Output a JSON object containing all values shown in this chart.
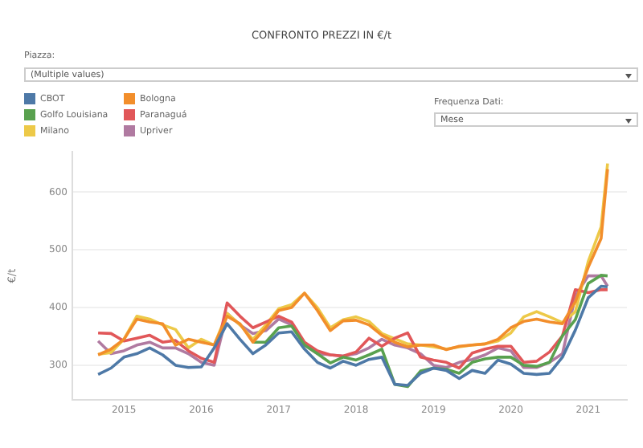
{
  "chart_data": {
    "type": "line",
    "title": "CONFRONTO PREZZI IN €/t",
    "ylabel": "€/t",
    "annotations": [
      "Piazza:",
      "(Multiple values)",
      "Frequenza Dati:",
      "Mese"
    ],
    "x": [
      "2014-09",
      "2014-11",
      "2015-01",
      "2015-03",
      "2015-05",
      "2015-07",
      "2015-09",
      "2015-11",
      "2016-01",
      "2016-03",
      "2016-05",
      "2016-07",
      "2016-09",
      "2016-11",
      "2017-01",
      "2017-03",
      "2017-05",
      "2017-07",
      "2017-09",
      "2017-11",
      "2018-01",
      "2018-03",
      "2018-05",
      "2018-07",
      "2018-09",
      "2018-11",
      "2019-01",
      "2019-03",
      "2019-05",
      "2019-07",
      "2019-09",
      "2019-11",
      "2020-01",
      "2020-03",
      "2020-05",
      "2020-07",
      "2020-09",
      "2020-11",
      "2021-01",
      "2021-03",
      "2021-04"
    ],
    "series": [
      {
        "name": "CBOT",
        "color": "#4e79a7",
        "values": [
          284,
          295,
          314,
          320,
          330,
          318,
          300,
          296,
          297,
          330,
          372,
          345,
          320,
          335,
          356,
          358,
          328,
          305,
          295,
          307,
          300,
          310,
          314,
          267,
          265,
          286,
          295,
          291,
          277,
          291,
          286,
          309,
          302,
          286,
          284,
          286,
          314,
          361,
          417,
          437,
          436
        ]
      },
      {
        "name": "Bologna",
        "color": "#f28e2b",
        "values": [
          318,
          328,
          345,
          380,
          375,
          372,
          335,
          345,
          340,
          335,
          385,
          372,
          340,
          365,
          395,
          400,
          425,
          395,
          360,
          377,
          378,
          370,
          352,
          340,
          332,
          335,
          335,
          327,
          333,
          335,
          337,
          345,
          365,
          376,
          380,
          375,
          372,
          410,
          470,
          520,
          640
        ]
      },
      {
        "name": "Golfo Louisiana",
        "color": "#59a14f",
        "values": [
          null,
          null,
          null,
          null,
          null,
          null,
          null,
          null,
          null,
          null,
          null,
          null,
          340,
          340,
          365,
          368,
          335,
          320,
          304,
          314,
          309,
          318,
          328,
          267,
          263,
          290,
          295,
          293,
          286,
          305,
          311,
          314,
          314,
          300,
          298,
          305,
          351,
          379,
          442,
          456,
          455
        ]
      },
      {
        "name": "Paranaguá",
        "color": "#e15759",
        "values": [
          356,
          355,
          342,
          347,
          352,
          340,
          343,
          325,
          312,
          305,
          408,
          385,
          365,
          375,
          385,
          375,
          340,
          325,
          318,
          316,
          323,
          347,
          333,
          347,
          356,
          314,
          309,
          305,
          295,
          321,
          328,
          333,
          333,
          305,
          307,
          323,
          351,
          431,
          426,
          431,
          431
        ]
      },
      {
        "name": "Milano",
        "color": "#edc948",
        "values": [
          319,
          322,
          345,
          385,
          380,
          370,
          362,
          330,
          345,
          335,
          390,
          370,
          345,
          370,
          398,
          405,
          425,
          400,
          365,
          379,
          384,
          376,
          355,
          346,
          337,
          335,
          332,
          328,
          332,
          335,
          337,
          342,
          356,
          384,
          393,
          384,
          374,
          393,
          480,
          540,
          650
        ]
      },
      {
        "name": "Upriver",
        "color": "#b07aa1",
        "values": [
          342,
          320,
          325,
          335,
          340,
          330,
          330,
          320,
          305,
          300,
          390,
          370,
          355,
          360,
          380,
          370,
          335,
          320,
          318,
          316,
          320,
          330,
          345,
          335,
          330,
          320,
          300,
          296,
          305,
          310,
          318,
          330,
          325,
          296,
          296,
          305,
          320,
          420,
          455,
          455,
          437
        ]
      }
    ],
    "xlim": [
      "2014-05",
      "2021-07"
    ],
    "xticks": [
      "2015",
      "2016",
      "2017",
      "2018",
      "2019",
      "2020",
      "2021"
    ],
    "ylim": [
      240,
      670
    ],
    "yticks": [
      300,
      400,
      500,
      600
    ],
    "grid": "y",
    "legend": "top left",
    "marker": "none",
    "line_style": "solid"
  }
}
